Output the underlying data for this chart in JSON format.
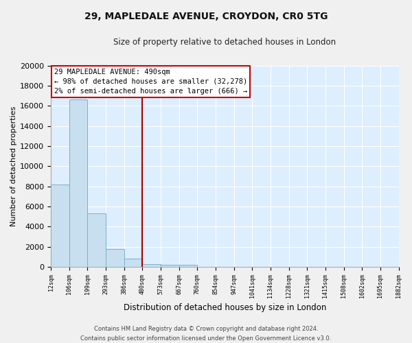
{
  "title": "29, MAPLEDALE AVENUE, CROYDON, CR0 5TG",
  "subtitle": "Size of property relative to detached houses in London",
  "bar_values": [
    8200,
    16600,
    5300,
    1800,
    800,
    300,
    200,
    200,
    0,
    0,
    0,
    0,
    0,
    0,
    0,
    0,
    0,
    0,
    0
  ],
  "x_labels": [
    "12sqm",
    "106sqm",
    "199sqm",
    "293sqm",
    "386sqm",
    "480sqm",
    "573sqm",
    "667sqm",
    "760sqm",
    "854sqm",
    "947sqm",
    "1041sqm",
    "1134sqm",
    "1228sqm",
    "1321sqm",
    "1415sqm",
    "1508sqm",
    "1602sqm",
    "1695sqm",
    "1882sqm"
  ],
  "bar_color": "#c8dff0",
  "bar_edge_color": "#7ab0cc",
  "ylabel": "Number of detached properties",
  "xlabel": "Distribution of detached houses by size in London",
  "ylim": [
    0,
    20000
  ],
  "yticks": [
    0,
    2000,
    4000,
    6000,
    8000,
    10000,
    12000,
    14000,
    16000,
    18000,
    20000
  ],
  "vline_color": "#aa0000",
  "annotation_title": "29 MAPLEDALE AVENUE: 490sqm",
  "annotation_line1": "← 98% of detached houses are smaller (32,278)",
  "annotation_line2": "2% of semi-detached houses are larger (666) →",
  "annotation_box_color": "#ffffff",
  "annotation_box_edge": "#cc0000",
  "footer_line1": "Contains HM Land Registry data © Crown copyright and database right 2024.",
  "footer_line2": "Contains public sector information licensed under the Open Government Licence v3.0.",
  "bg_color": "#f0f0f0",
  "plot_bg_color": "#ddeeff",
  "grid_color": "#ffffff"
}
